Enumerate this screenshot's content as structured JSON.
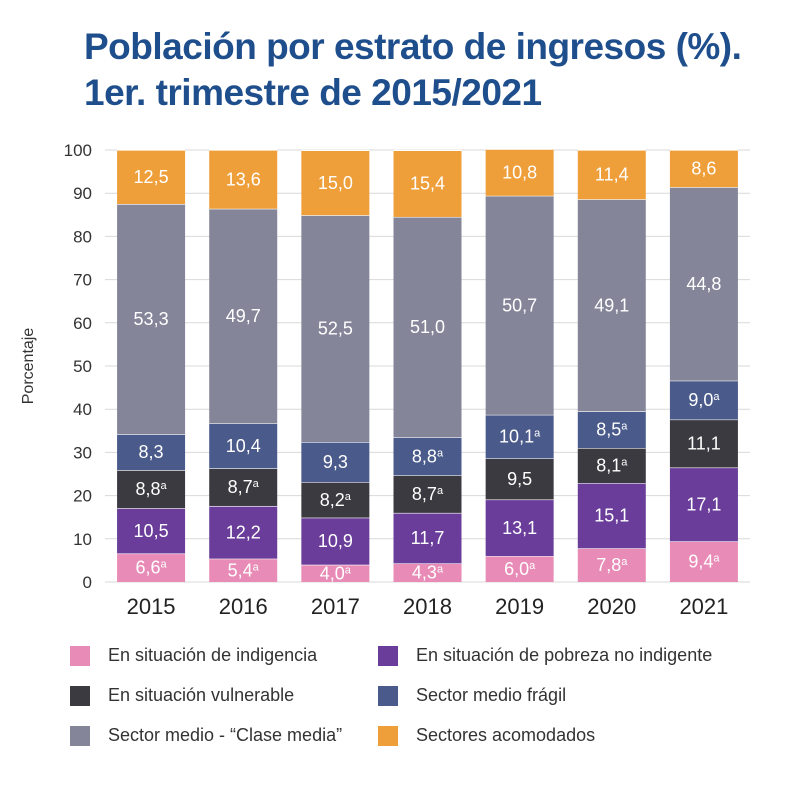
{
  "title_line1": "Población por estrato de ingresos (%).",
  "title_line2": "1er. trimestre de 2015/2021",
  "chart_data": {
    "type": "bar",
    "stacked": true,
    "categories": [
      "2015",
      "2016",
      "2017",
      "2018",
      "2019",
      "2020",
      "2021"
    ],
    "ylabel": "Porcentaje",
    "ylim": [
      0,
      100
    ],
    "yticks": [
      0,
      10,
      20,
      30,
      40,
      50,
      60,
      70,
      80,
      90,
      100
    ],
    "legend_position": "bottom",
    "series": [
      {
        "name": "En situación de indigencia",
        "color": "#e88bb6",
        "values": [
          6.6,
          5.4,
          4.0,
          4.3,
          6.0,
          7.8,
          9.4
        ],
        "labels": [
          "6,6",
          "5,4",
          "4,0",
          "4,3",
          "6,0",
          "7,8",
          "9,4"
        ],
        "superscripts": [
          "a",
          "a",
          "a",
          "a",
          "a",
          "a",
          "a"
        ]
      },
      {
        "name": "En situación de pobreza no indigente",
        "color": "#6a3d9a",
        "values": [
          10.5,
          12.2,
          10.9,
          11.7,
          13.1,
          15.1,
          17.1
        ],
        "labels": [
          "10,5",
          "12,2",
          "10,9",
          "11,7",
          "13,1",
          "15,1",
          "17,1"
        ],
        "superscripts": [
          "",
          "",
          "",
          "",
          "",
          "",
          ""
        ]
      },
      {
        "name": "En situación vulnerable",
        "color": "#3a3a40",
        "values": [
          8.8,
          8.7,
          8.2,
          8.7,
          9.5,
          8.1,
          11.1
        ],
        "labels": [
          "8,8",
          "8,7",
          "8,2",
          "8,7",
          "9,5",
          "8,1",
          "11,1"
        ],
        "superscripts": [
          "a",
          "a",
          "a",
          "a",
          "",
          "a",
          ""
        ]
      },
      {
        "name": "Sector medio frágil",
        "color": "#4a5a8a",
        "values": [
          8.3,
          10.4,
          9.3,
          8.8,
          10.1,
          8.5,
          9.0
        ],
        "labels": [
          "8,3",
          "10,4",
          "9,3",
          "8,8",
          "10,1",
          "8,5",
          "9,0"
        ],
        "superscripts": [
          "",
          "",
          "",
          "a",
          "a",
          "a",
          "a"
        ]
      },
      {
        "name": "Sector medio - “Clase media”",
        "color": "#858599",
        "values": [
          53.3,
          49.7,
          52.5,
          51.0,
          50.7,
          49.1,
          44.8
        ],
        "labels": [
          "53,3",
          "49,7",
          "52,5",
          "51,0",
          "50,7",
          "49,1",
          "44,8"
        ],
        "superscripts": [
          "",
          "",
          "",
          "",
          "",
          "",
          ""
        ]
      },
      {
        "name": "Sectores acomodados",
        "color": "#ee9f3a",
        "values": [
          12.5,
          13.6,
          15.0,
          15.4,
          10.8,
          11.4,
          8.6
        ],
        "labels": [
          "12,5",
          "13,6",
          "15,0",
          "15,4",
          "10,8",
          "11,4",
          "8,6"
        ],
        "superscripts": [
          "",
          "",
          "",
          "",
          "",
          "",
          ""
        ]
      }
    ]
  }
}
